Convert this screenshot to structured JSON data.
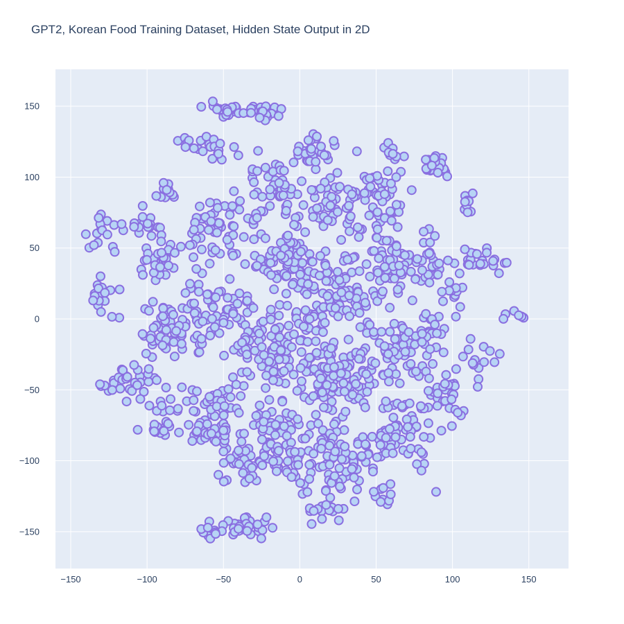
{
  "chart_data": {
    "type": "scatter",
    "title": "GPT2, Korean Food Training Dataset, Hidden State Output in 2D",
    "xlabel": "",
    "ylabel": "",
    "xlim": [
      -160,
      176
    ],
    "ylim": [
      -176,
      176
    ],
    "x_ticks": [
      -150,
      -100,
      -50,
      0,
      50,
      100,
      150
    ],
    "y_ticks": [
      -150,
      -100,
      -50,
      0,
      50,
      100,
      150
    ],
    "grid": true,
    "legend": "none",
    "point_count_approx": 1500,
    "style": {
      "plot_background": "#e5ecf6",
      "grid_color": "#ffffff",
      "marker_fill": "#b7d4f5",
      "marker_outline": "#8a6fe0"
    },
    "clusters": [
      {
        "x": -48,
        "y": 147,
        "spread_x": 9,
        "spread_y": 4,
        "n": 25
      },
      {
        "x": -28,
        "y": 146,
        "spread_x": 10,
        "spread_y": 4,
        "n": 20
      },
      {
        "x": -65,
        "y": 124,
        "spread_x": 12,
        "spread_y": 3,
        "n": 14
      },
      {
        "x": -50,
        "y": 117,
        "spread_x": 10,
        "spread_y": 5,
        "n": 10
      },
      {
        "x": -38,
        "y": -146,
        "spread_x": 14,
        "spread_y": 5,
        "n": 30
      },
      {
        "x": -58,
        "y": -150,
        "spread_x": 6,
        "spread_y": 4,
        "n": 10
      },
      {
        "x": 54,
        "y": -125,
        "spread_x": 10,
        "spread_y": 5,
        "n": 10
      },
      {
        "x": 17,
        "y": -135,
        "spread_x": 12,
        "spread_y": 6,
        "n": 18
      },
      {
        "x": 90,
        "y": 108,
        "spread_x": 6,
        "spread_y": 5,
        "n": 22
      },
      {
        "x": 111,
        "y": 80,
        "spread_x": 3,
        "spread_y": 5,
        "n": 10
      },
      {
        "x": 118,
        "y": 40,
        "spread_x": 12,
        "spread_y": 7,
        "n": 24
      },
      {
        "x": 103,
        "y": 17,
        "spread_x": 5,
        "spread_y": 5,
        "n": 10
      },
      {
        "x": 141,
        "y": 4,
        "spread_x": 7,
        "spread_y": 4,
        "n": 6
      },
      {
        "x": -125,
        "y": -48,
        "spread_x": 6,
        "spread_y": 5,
        "n": 8
      },
      {
        "x": -88,
        "y": 90,
        "spread_x": 6,
        "spread_y": 4,
        "n": 12
      },
      {
        "x": -100,
        "y": 67,
        "spread_x": 8,
        "spread_y": 8,
        "n": 16
      },
      {
        "x": -125,
        "y": 60,
        "spread_x": 12,
        "spread_y": 12,
        "n": 18
      },
      {
        "x": -130,
        "y": 15,
        "spread_x": 8,
        "spread_y": 10,
        "n": 18
      },
      {
        "x": -95,
        "y": 40,
        "spread_x": 10,
        "spread_y": 10,
        "n": 30
      },
      {
        "x": -90,
        "y": -10,
        "spread_x": 12,
        "spread_y": 16,
        "n": 45
      },
      {
        "x": -105,
        "y": -45,
        "spread_x": 10,
        "spread_y": 10,
        "n": 25
      },
      {
        "x": -90,
        "y": -70,
        "spread_x": 10,
        "spread_y": 10,
        "n": 25
      },
      {
        "x": -55,
        "y": 60,
        "spread_x": 16,
        "spread_y": 22,
        "n": 60
      },
      {
        "x": -55,
        "y": 0,
        "spread_x": 20,
        "spread_y": 20,
        "n": 80
      },
      {
        "x": -55,
        "y": -70,
        "spread_x": 16,
        "spread_y": 20,
        "n": 60
      },
      {
        "x": -35,
        "y": -105,
        "spread_x": 16,
        "spread_y": 10,
        "n": 30
      },
      {
        "x": -15,
        "y": 95,
        "spread_x": 18,
        "spread_y": 20,
        "n": 50
      },
      {
        "x": -10,
        "y": 40,
        "spread_x": 20,
        "spread_y": 20,
        "n": 90
      },
      {
        "x": -10,
        "y": -20,
        "spread_x": 22,
        "spread_y": 20,
        "n": 110
      },
      {
        "x": -15,
        "y": -85,
        "spread_x": 20,
        "spread_y": 20,
        "n": 90
      },
      {
        "x": 10,
        "y": 120,
        "spread_x": 14,
        "spread_y": 8,
        "n": 25
      },
      {
        "x": 25,
        "y": 80,
        "spread_x": 18,
        "spread_y": 18,
        "n": 60
      },
      {
        "x": 25,
        "y": 20,
        "spread_x": 18,
        "spread_y": 20,
        "n": 80
      },
      {
        "x": 25,
        "y": -40,
        "spread_x": 18,
        "spread_y": 22,
        "n": 100
      },
      {
        "x": 25,
        "y": -100,
        "spread_x": 20,
        "spread_y": 18,
        "n": 70
      },
      {
        "x": 55,
        "y": 90,
        "spread_x": 10,
        "spread_y": 15,
        "n": 40
      },
      {
        "x": 60,
        "y": 40,
        "spread_x": 15,
        "spread_y": 18,
        "n": 60
      },
      {
        "x": 60,
        "y": -20,
        "spread_x": 16,
        "spread_y": 18,
        "n": 60
      },
      {
        "x": 65,
        "y": -80,
        "spread_x": 15,
        "spread_y": 20,
        "n": 70
      },
      {
        "x": 85,
        "y": 40,
        "spread_x": 8,
        "spread_y": 15,
        "n": 25
      },
      {
        "x": 85,
        "y": -10,
        "spread_x": 10,
        "spread_y": 15,
        "n": 25
      },
      {
        "x": 95,
        "y": -55,
        "spread_x": 10,
        "spread_y": 15,
        "n": 30
      },
      {
        "x": 115,
        "y": -30,
        "spread_x": 8,
        "spread_y": 14,
        "n": 15
      },
      {
        "x": 60,
        "y": 118,
        "spread_x": 4,
        "spread_y": 4,
        "n": 8
      }
    ]
  }
}
